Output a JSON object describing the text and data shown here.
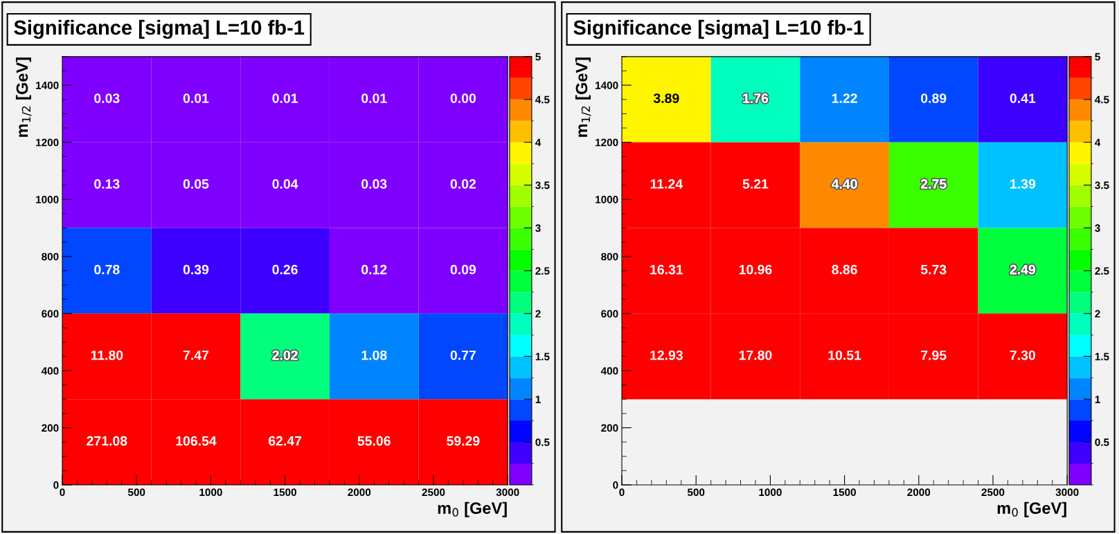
{
  "chart_data": [
    {
      "type": "heatmap",
      "title": "Significance [sigma] L=10 fb-1",
      "xlabel": "m$_{0}$ [GeV]",
      "ylabel": "m$_{1/2}$ [GeV]",
      "x": [
        300,
        900,
        1500,
        2100,
        2700
      ],
      "y": [
        1350,
        1050,
        750,
        450,
        150
      ],
      "cells": [
        [
          0.03,
          0.01,
          0.01,
          0.01,
          0.0
        ],
        [
          0.13,
          0.05,
          0.04,
          0.03,
          0.02
        ],
        [
          0.78,
          0.39,
          0.26,
          0.12,
          0.09
        ],
        [
          11.8,
          7.47,
          2.02,
          1.08,
          0.77
        ],
        [
          271.08,
          106.54,
          62.47,
          55.06,
          59.29
        ]
      ],
      "cell_labels": [
        [
          "0.03",
          "0.01",
          "0.01",
          "0.01",
          "0.00"
        ],
        [
          "0.13",
          "0.05",
          "0.04",
          "0.03",
          "0.02"
        ],
        [
          "0.78",
          "0.39",
          "0.26",
          "0.12",
          "0.09"
        ],
        [
          "11.80",
          "7.47",
          "2.02",
          "1.08",
          "0.77"
        ],
        [
          "271.08",
          "106.54",
          "62.47",
          "55.06",
          "59.29"
        ]
      ],
      "xlim": [
        0,
        3000
      ],
      "xticks": [
        0,
        500,
        1000,
        1500,
        2000,
        2500,
        3000
      ],
      "ylim": [
        0,
        1500
      ],
      "yticks": [
        0,
        200,
        400,
        600,
        800,
        1000,
        1200,
        1400
      ],
      "clim": [
        0,
        5
      ],
      "cticks": [
        0.5,
        1,
        1.5,
        2,
        2.5,
        3,
        3.5,
        4,
        4.5,
        5
      ]
    },
    {
      "type": "heatmap",
      "title": "Significance [sigma] L=10 fb-1",
      "xlabel": "m$_{0}$ [GeV]",
      "ylabel": "m$_{1/2}$ [GeV]",
      "x": [
        300,
        900,
        1500,
        2100,
        2700
      ],
      "y": [
        1350,
        1050,
        750,
        450
      ],
      "cells": [
        [
          3.89,
          1.76,
          1.22,
          0.89,
          0.41
        ],
        [
          11.24,
          5.21,
          4.4,
          2.75,
          1.39
        ],
        [
          16.31,
          10.96,
          8.86,
          5.73,
          2.49
        ],
        [
          12.93,
          17.8,
          10.51,
          7.95,
          7.3
        ]
      ],
      "cell_labels": [
        [
          "3.89",
          "1.76",
          "1.22",
          "0.89",
          "0.41"
        ],
        [
          "11.24",
          "5.21",
          "4.40",
          "2.75",
          "1.39"
        ],
        [
          "16.31",
          "10.96",
          "8.86",
          "5.73",
          "2.49"
        ],
        [
          "12.93",
          "17.80",
          "10.51",
          "7.95",
          "7.30"
        ]
      ],
      "xlim": [
        0,
        3000
      ],
      "xticks": [
        0,
        500,
        1000,
        1500,
        2000,
        2500,
        3000
      ],
      "ylim": [
        0,
        1500
      ],
      "yticks": [
        0,
        200,
        400,
        600,
        800,
        1000,
        1200,
        1400
      ],
      "clim": [
        0,
        5
      ],
      "cticks": [
        0.5,
        1,
        1.5,
        2,
        2.5,
        3,
        3.5,
        4,
        4.5,
        5
      ]
    }
  ]
}
